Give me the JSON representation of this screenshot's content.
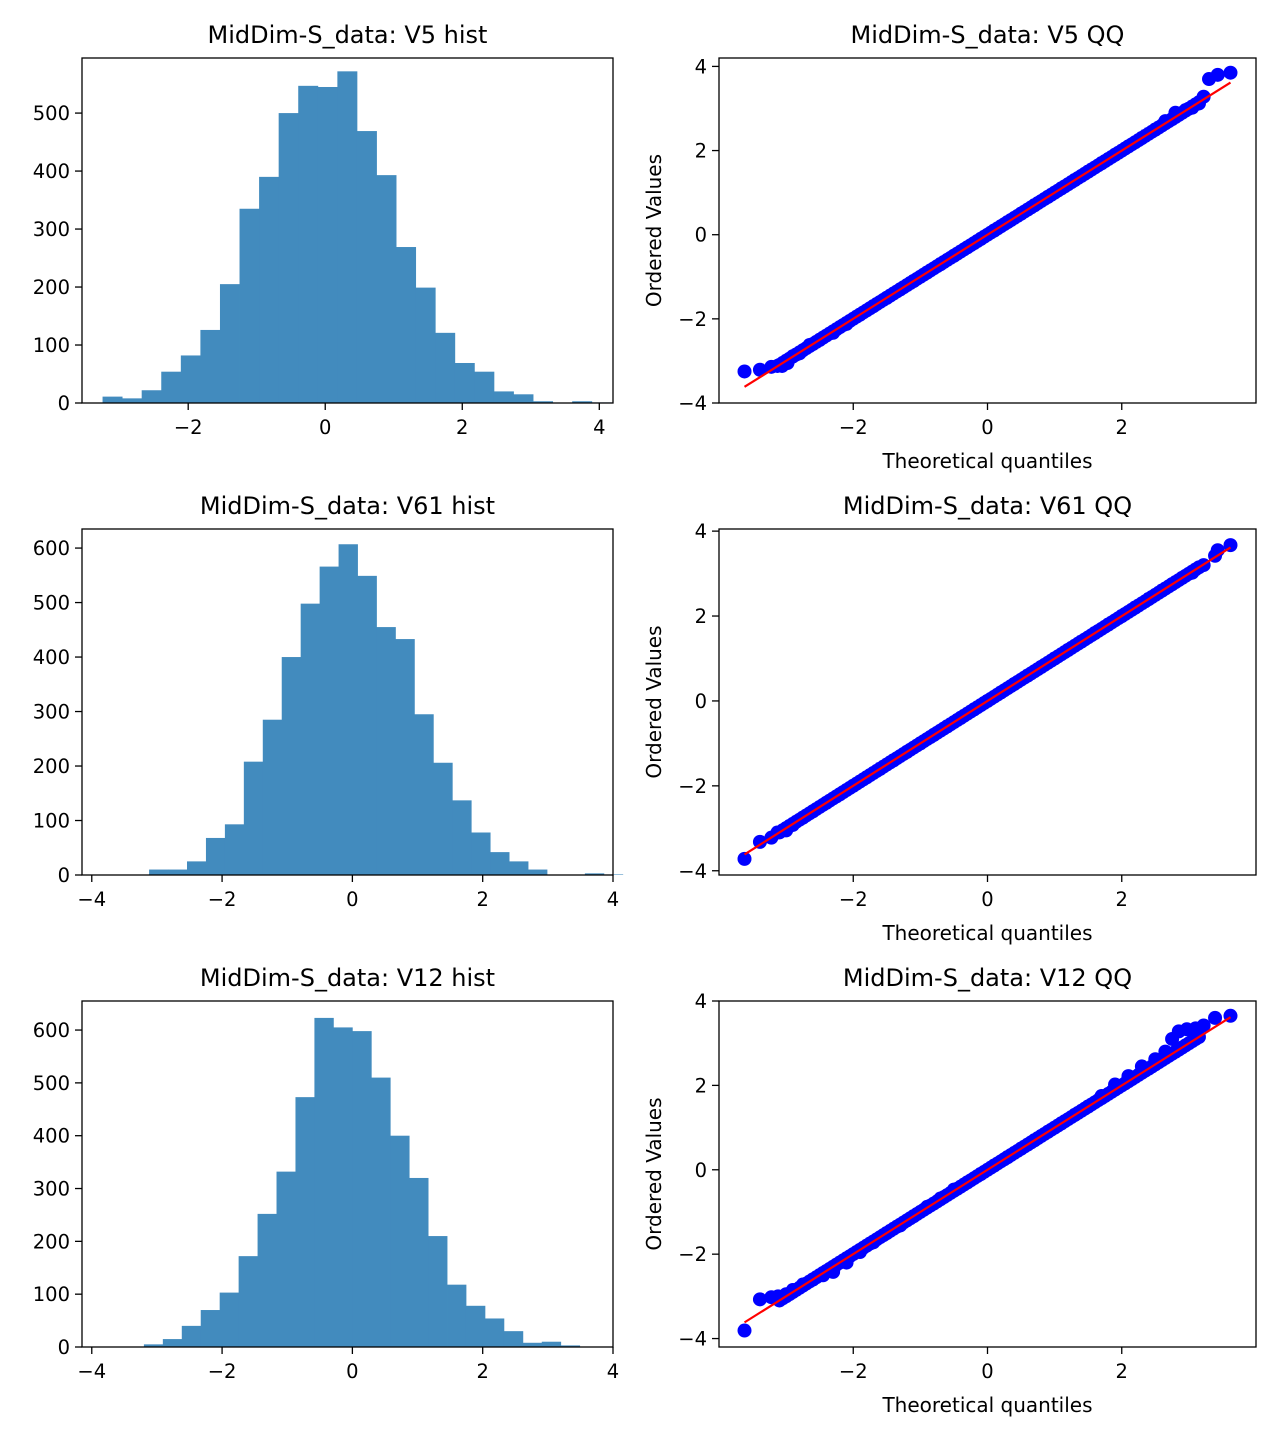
{
  "chart_data": [
    {
      "id": "v5-hist",
      "type": "bar",
      "title": "MidDim-S_data: V5 hist",
      "xlabel": "",
      "ylabel": "",
      "xlim": [
        -3.55,
        4.2
      ],
      "ylim": [
        0,
        595
      ],
      "xticks": [
        -2,
        0,
        2,
        4
      ],
      "yticks": [
        0,
        100,
        200,
        300,
        400,
        500
      ],
      "bin_start": -3.25,
      "bin_width": 0.2856,
      "values": [
        11,
        8,
        22,
        54,
        82,
        126,
        205,
        335,
        390,
        500,
        547,
        545,
        572,
        469,
        393,
        269,
        199,
        121,
        69,
        54,
        20,
        15,
        3,
        0,
        3,
        1
      ]
    },
    {
      "id": "v5-qq",
      "type": "scatter",
      "title": "MidDim-S_data: V5 QQ",
      "xlabel": "Theoretical quantiles",
      "ylabel": "Ordered Values",
      "xlim": [
        -4.0,
        4.0
      ],
      "ylim": [
        -4.0,
        4.2
      ],
      "xticks": [
        -2,
        0,
        2
      ],
      "yticks": [
        -4,
        -2,
        0,
        2,
        4
      ],
      "fit_line": {
        "slope": 0.999,
        "intercept": 0.0
      },
      "points": [
        [
          -3.62,
          -3.25
        ],
        [
          -3.39,
          -3.21
        ],
        [
          -3.22,
          -3.14
        ],
        [
          -3.13,
          -3.12
        ],
        [
          -3.06,
          -3.12
        ],
        [
          -2.98,
          -3.05
        ],
        [
          -2.9,
          -2.89
        ],
        [
          -2.8,
          -2.82
        ],
        [
          -2.65,
          -2.62
        ],
        [
          -2.5,
          -2.5
        ],
        [
          -2.3,
          -2.33
        ],
        [
          -2.1,
          -2.12
        ],
        [
          -1.9,
          -1.9
        ],
        [
          -1.7,
          -1.7
        ],
        [
          -1.5,
          -1.5
        ],
        [
          -1.3,
          -1.3
        ],
        [
          -1.1,
          -1.1
        ],
        [
          -0.9,
          -0.9
        ],
        [
          -0.7,
          -0.7
        ],
        [
          -0.5,
          -0.5
        ],
        [
          -0.3,
          -0.3
        ],
        [
          -0.1,
          -0.1
        ],
        [
          0.1,
          0.1
        ],
        [
          0.3,
          0.3
        ],
        [
          0.5,
          0.5
        ],
        [
          0.7,
          0.7
        ],
        [
          0.9,
          0.9
        ],
        [
          1.1,
          1.1
        ],
        [
          1.3,
          1.3
        ],
        [
          1.5,
          1.5
        ],
        [
          1.7,
          1.7
        ],
        [
          1.9,
          1.9
        ],
        [
          2.1,
          2.1
        ],
        [
          2.3,
          2.3
        ],
        [
          2.5,
          2.5
        ],
        [
          2.65,
          2.7
        ],
        [
          2.8,
          2.9
        ],
        [
          2.95,
          2.96
        ],
        [
          3.05,
          3.02
        ],
        [
          3.15,
          3.12
        ],
        [
          3.22,
          3.28
        ],
        [
          3.3,
          3.7
        ],
        [
          3.43,
          3.8
        ],
        [
          3.62,
          3.85
        ]
      ]
    },
    {
      "id": "v61-hist",
      "type": "bar",
      "title": "MidDim-S_data: V61 hist",
      "xlabel": "",
      "ylabel": "",
      "xlim": [
        -4.15,
        4.0
      ],
      "ylim": [
        0,
        635
      ],
      "xticks": [
        -4,
        -2,
        0,
        2,
        4
      ],
      "yticks": [
        0,
        100,
        200,
        300,
        400,
        500,
        600
      ],
      "bin_start": -3.12,
      "bin_width": 0.2908,
      "values": [
        10,
        10,
        25,
        68,
        93,
        208,
        285,
        400,
        498,
        566,
        607,
        549,
        455,
        433,
        295,
        206,
        137,
        78,
        42,
        25,
        10,
        0,
        0,
        3,
        1
      ]
    },
    {
      "id": "v61-qq",
      "type": "scatter",
      "title": "MidDim-S_data: V61 QQ",
      "xlabel": "Theoretical quantiles",
      "ylabel": "Ordered Values",
      "xlim": [
        -4.0,
        4.0
      ],
      "ylim": [
        -4.1,
        4.05
      ],
      "xticks": [
        -2,
        0,
        2
      ],
      "yticks": [
        -4,
        -2,
        0,
        2,
        4
      ],
      "fit_line": {
        "slope": 0.999,
        "intercept": 0.0
      },
      "points": [
        [
          -3.62,
          -3.72
        ],
        [
          -3.39,
          -3.32
        ],
        [
          -3.22,
          -3.22
        ],
        [
          -3.13,
          -3.1
        ],
        [
          -3.0,
          -3.05
        ],
        [
          -2.9,
          -2.92
        ],
        [
          -2.75,
          -2.75
        ],
        [
          -2.6,
          -2.6
        ],
        [
          -2.4,
          -2.4
        ],
        [
          -2.2,
          -2.2
        ],
        [
          -2.0,
          -2.0
        ],
        [
          -1.8,
          -1.8
        ],
        [
          -1.6,
          -1.6
        ],
        [
          -1.4,
          -1.4
        ],
        [
          -1.2,
          -1.2
        ],
        [
          -1.0,
          -1.0
        ],
        [
          -0.8,
          -0.8
        ],
        [
          -0.6,
          -0.6
        ],
        [
          -0.4,
          -0.4
        ],
        [
          -0.2,
          -0.2
        ],
        [
          0.0,
          0.0
        ],
        [
          0.2,
          0.2
        ],
        [
          0.4,
          0.4
        ],
        [
          0.6,
          0.6
        ],
        [
          0.8,
          0.8
        ],
        [
          1.0,
          1.0
        ],
        [
          1.2,
          1.2
        ],
        [
          1.4,
          1.4
        ],
        [
          1.6,
          1.6
        ],
        [
          1.8,
          1.8
        ],
        [
          2.0,
          2.0
        ],
        [
          2.2,
          2.2
        ],
        [
          2.4,
          2.4
        ],
        [
          2.6,
          2.6
        ],
        [
          2.75,
          2.75
        ],
        [
          2.9,
          2.9
        ],
        [
          3.05,
          3.02
        ],
        [
          3.22,
          3.2
        ],
        [
          3.39,
          3.42
        ],
        [
          3.43,
          3.55
        ],
        [
          3.62,
          3.67
        ]
      ]
    },
    {
      "id": "v12-hist",
      "type": "bar",
      "title": "MidDim-S_data: V12 hist",
      "xlabel": "",
      "ylabel": "",
      "xlim": [
        -4.15,
        4.0
      ],
      "ylim": [
        0,
        655
      ],
      "xticks": [
        -4,
        -2,
        0,
        2,
        4
      ],
      "yticks": [
        0,
        100,
        200,
        300,
        400,
        500,
        600
      ],
      "bin_start": -3.2,
      "bin_width": 0.2908,
      "values": [
        5,
        15,
        40,
        70,
        103,
        172,
        252,
        332,
        473,
        623,
        605,
        598,
        510,
        400,
        320,
        210,
        118,
        78,
        54,
        30,
        8,
        10,
        3,
        0
      ]
    },
    {
      "id": "v12-qq",
      "type": "scatter",
      "title": "MidDim-S_data: V12 QQ",
      "xlabel": "Theoretical quantiles",
      "ylabel": "Ordered Values",
      "xlim": [
        -4.0,
        4.0
      ],
      "ylim": [
        -4.2,
        4.0
      ],
      "xticks": [
        -2,
        0,
        2
      ],
      "yticks": [
        -4,
        -2,
        0,
        2,
        4
      ],
      "fit_line": {
        "slope": 0.999,
        "intercept": 0.0
      },
      "points": [
        [
          -3.62,
          -3.81
        ],
        [
          -3.39,
          -3.07
        ],
        [
          -3.22,
          -3.02
        ],
        [
          -3.12,
          -3.0
        ],
        [
          -3.0,
          -2.95
        ],
        [
          -2.9,
          -2.85
        ],
        [
          -2.75,
          -2.72
        ],
        [
          -2.6,
          -2.6
        ],
        [
          -2.45,
          -2.5
        ],
        [
          -2.3,
          -2.42
        ],
        [
          -2.1,
          -2.2
        ],
        [
          -1.9,
          -1.95
        ],
        [
          -1.7,
          -1.72
        ],
        [
          -1.5,
          -1.5
        ],
        [
          -1.3,
          -1.32
        ],
        [
          -1.1,
          -1.1
        ],
        [
          -0.9,
          -0.88
        ],
        [
          -0.7,
          -0.68
        ],
        [
          -0.5,
          -0.47
        ],
        [
          -0.3,
          -0.3
        ],
        [
          -0.1,
          -0.1
        ],
        [
          0.1,
          0.1
        ],
        [
          0.3,
          0.3
        ],
        [
          0.5,
          0.5
        ],
        [
          0.7,
          0.7
        ],
        [
          0.9,
          0.9
        ],
        [
          1.1,
          1.1
        ],
        [
          1.3,
          1.3
        ],
        [
          1.5,
          1.5
        ],
        [
          1.7,
          1.75
        ],
        [
          1.9,
          2.02
        ],
        [
          2.1,
          2.22
        ],
        [
          2.3,
          2.45
        ],
        [
          2.5,
          2.62
        ],
        [
          2.65,
          2.8
        ],
        [
          2.75,
          3.1
        ],
        [
          2.85,
          3.28
        ],
        [
          2.97,
          3.33
        ],
        [
          3.1,
          3.35
        ],
        [
          3.22,
          3.42
        ],
        [
          3.39,
          3.6
        ],
        [
          3.62,
          3.65
        ]
      ]
    }
  ]
}
